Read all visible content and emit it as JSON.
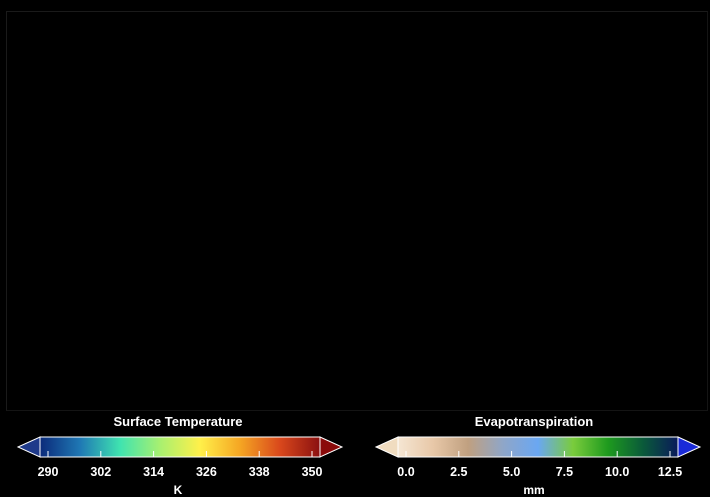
{
  "legends": [
    {
      "title": "Surface Temperature",
      "unit": "K",
      "ticks": [
        "290",
        "302",
        "314",
        "326",
        "338",
        "350"
      ],
      "colors": [
        "#0b2a7a",
        "#1f78b4",
        "#3fe3b0",
        "#a8f070",
        "#fff04a",
        "#f5a623",
        "#d9481c",
        "#8a1010"
      ],
      "under_color": "#1f3a8a",
      "over_color": "#8a0a0a"
    },
    {
      "title": "Evapotranspiration",
      "unit": "mm",
      "ticks": [
        "0.0",
        "2.5",
        "5.0",
        "7.5",
        "10.0",
        "12.5"
      ],
      "colors": [
        "#f5e6d3",
        "#e8c8a8",
        "#c0a080",
        "#8fa6c8",
        "#6aa7f2",
        "#7acc3c",
        "#1e9a1e",
        "#0a5a3a",
        "#0a1a5a"
      ],
      "under_color": "#f0dcc0",
      "over_color": "#1a2ad8"
    }
  ]
}
